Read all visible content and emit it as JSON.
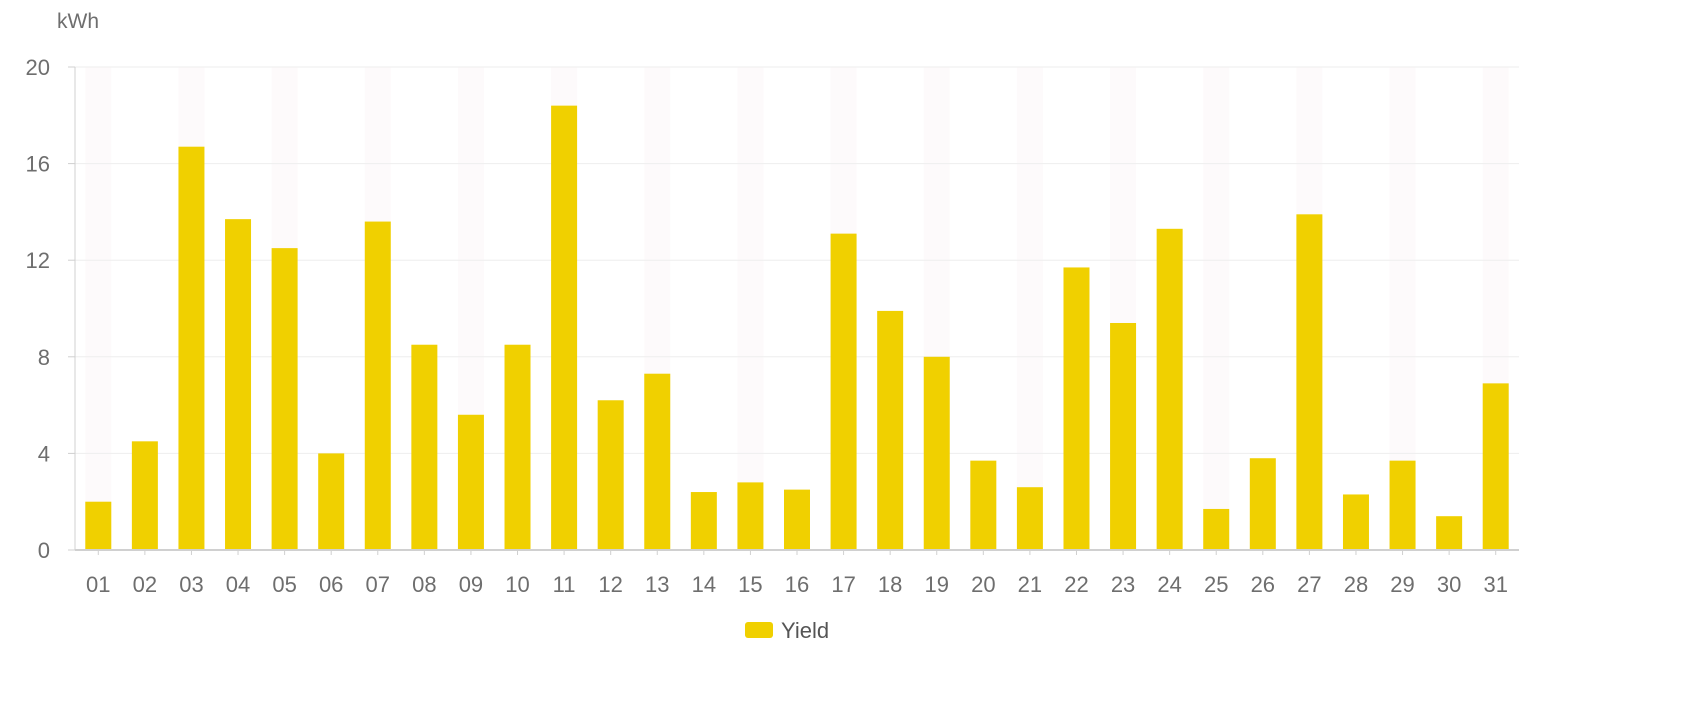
{
  "chart_data": {
    "type": "bar",
    "ylabel": "kWh",
    "ylim": [
      0,
      20
    ],
    "yticks": [
      0,
      4,
      8,
      12,
      16,
      20
    ],
    "grid": true,
    "legend_position": "bottom-center",
    "categories": [
      "01",
      "02",
      "03",
      "04",
      "05",
      "06",
      "07",
      "08",
      "09",
      "10",
      "11",
      "12",
      "13",
      "14",
      "15",
      "16",
      "17",
      "18",
      "19",
      "20",
      "21",
      "22",
      "23",
      "24",
      "25",
      "26",
      "27",
      "28",
      "29",
      "30",
      "31"
    ],
    "series": [
      {
        "name": "Yield",
        "color": "#f0d000",
        "values": [
          2.0,
          4.5,
          16.7,
          13.7,
          12.5,
          4.0,
          13.6,
          8.5,
          5.6,
          8.5,
          18.4,
          6.2,
          7.3,
          2.4,
          2.8,
          2.5,
          13.1,
          9.9,
          8.0,
          3.7,
          2.6,
          11.7,
          9.4,
          13.3,
          1.7,
          3.8,
          13.9,
          2.3,
          3.7,
          1.4,
          6.9
        ]
      }
    ],
    "colors": {
      "bar": "#f0d000",
      "band": "#fdfafb",
      "grid": "#eeeeee",
      "axis": "#d0d0d0",
      "text": "#6e6e6e"
    }
  }
}
